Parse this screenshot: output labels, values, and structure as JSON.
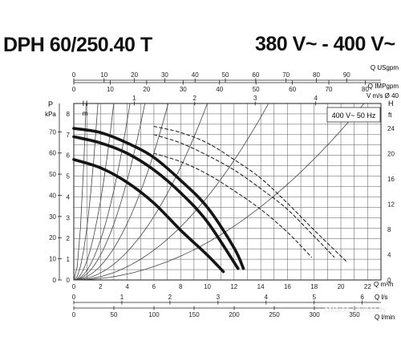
{
  "header": {
    "model": "DPH 60/250.40 T",
    "voltage": "380 V~ - 400 V~"
  },
  "chart_data": {
    "type": "line",
    "title": "DPH 60/250.40 T",
    "supply_label": "400 V~ 50 Hz",
    "watermark": "catalog.onliner.by",
    "x_axis": {
      "label": "Q m³/h",
      "range": [
        0,
        23
      ],
      "ticks": [
        0,
        2,
        4,
        6,
        8,
        10,
        12,
        14,
        16,
        18,
        20,
        22
      ]
    },
    "y_axis_left_H": {
      "label": "H m",
      "range": [
        0,
        8.5
      ],
      "ticks": [
        0,
        1,
        2,
        3,
        4,
        5,
        6,
        7,
        8
      ]
    },
    "y_axis_left_P": {
      "label": "P kPa",
      "range": [
        0,
        83.4
      ],
      "ticks": [
        0,
        10,
        20,
        30,
        40,
        50,
        60,
        70
      ]
    },
    "y_axis_right_H": {
      "label": "H ft",
      "range": [
        0,
        27.9
      ],
      "ticks": [
        0,
        4,
        8,
        12,
        16,
        20,
        24
      ]
    },
    "top_axes": [
      {
        "label": "Q USgpm",
        "max": 101.3,
        "ticks": [
          0,
          10,
          20,
          30,
          40,
          50,
          60,
          70,
          80,
          90
        ]
      },
      {
        "label": "Q IMPgpm",
        "max": 84.3,
        "ticks": [
          0,
          10,
          20,
          30,
          40,
          50,
          60,
          70,
          80
        ]
      },
      {
        "label": "V m/s Ø 40",
        "max": 5.08,
        "ticks": [
          1,
          2,
          3,
          4
        ]
      }
    ],
    "bottom_axes": [
      {
        "label": "Q l/s",
        "max": 6.39,
        "ticks": [
          0,
          1,
          2,
          3,
          4,
          5,
          6
        ]
      },
      {
        "label": "Q l/min",
        "max": 383,
        "ticks": [
          0,
          50,
          100,
          150,
          200,
          250,
          300,
          350
        ]
      }
    ],
    "series": [
      {
        "style": "solid",
        "x": [
          0,
          2,
          4,
          6,
          8,
          10,
          12,
          12.7
        ],
        "y": [
          7.3,
          7.1,
          6.6,
          5.9,
          4.8,
          3.5,
          1.55,
          0.55
        ]
      },
      {
        "style": "solid",
        "x": [
          0,
          2,
          4,
          6,
          8,
          10,
          12.3
        ],
        "y": [
          6.9,
          6.6,
          6.1,
          5.3,
          4.2,
          2.8,
          0.55
        ]
      },
      {
        "style": "solid",
        "x": [
          0,
          2,
          4,
          6,
          8,
          10,
          11.2
        ],
        "y": [
          5.8,
          5.4,
          4.7,
          3.7,
          2.4,
          1.2,
          0.4
        ]
      },
      {
        "style": "dashed",
        "x": [
          6,
          8,
          10,
          12,
          14,
          16,
          18,
          20.4
        ],
        "y": [
          7.4,
          7.1,
          6.6,
          5.8,
          4.9,
          3.7,
          2.4,
          0.9
        ]
      },
      {
        "style": "dashed",
        "x": [
          6,
          8,
          10,
          12,
          14,
          16,
          18,
          19.5
        ],
        "y": [
          7.0,
          6.6,
          6.0,
          5.3,
          4.4,
          3.4,
          2.1,
          1.1
        ]
      },
      {
        "style": "dashed",
        "x": [
          6,
          8,
          10,
          12,
          14,
          16,
          17.8
        ],
        "y": [
          6.1,
          5.7,
          5.1,
          4.3,
          3.4,
          2.3,
          1.1
        ]
      }
    ],
    "system_curves_k": [
      10,
      2.6,
      0.95,
      0.48,
      0.3,
      0.17,
      0.085,
      0.04,
      0.018
    ]
  }
}
